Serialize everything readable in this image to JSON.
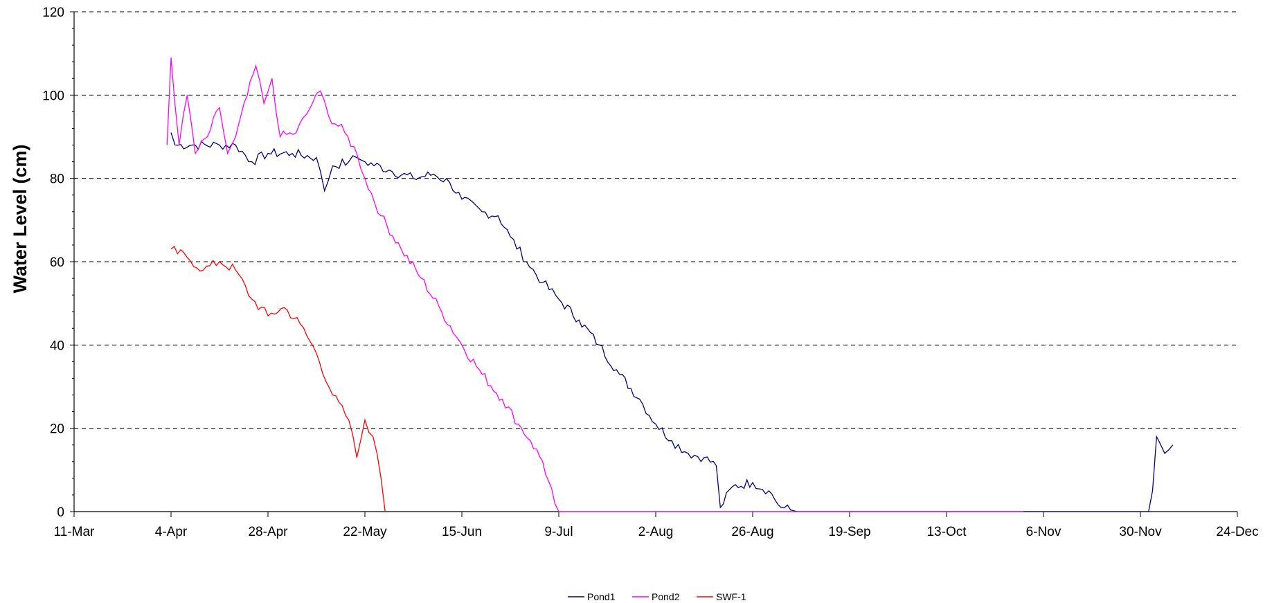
{
  "chart_data": {
    "type": "line",
    "title": "",
    "xlabel": "",
    "ylabel": "Water Level (cm)",
    "xlim": [
      "11-Mar",
      "24-Dec"
    ],
    "ylim": [
      0,
      120
    ],
    "x_ticks": [
      "11-Mar",
      "4-Apr",
      "28-Apr",
      "22-May",
      "15-Jun",
      "9-Jul",
      "2-Aug",
      "26-Aug",
      "19-Sep",
      "13-Oct",
      "6-Nov",
      "30-Nov",
      "24-Dec"
    ],
    "y_ticks": [
      0,
      20,
      40,
      60,
      80,
      100,
      120
    ],
    "grid": "horizontal dashed",
    "legend_position": "bottom-center",
    "series": [
      {
        "name": "Pond1",
        "color": "#000080",
        "points": [
          [
            "4-Apr",
            91
          ],
          [
            "5-Apr",
            88
          ],
          [
            "10-Apr",
            88
          ],
          [
            "16-Apr",
            88
          ],
          [
            "20-Apr",
            88
          ],
          [
            "24-Apr",
            84
          ],
          [
            "28-Apr",
            86
          ],
          [
            "4-May",
            86
          ],
          [
            "10-May",
            85
          ],
          [
            "12-May",
            77
          ],
          [
            "14-May",
            83
          ],
          [
            "18-May",
            84
          ],
          [
            "20-May",
            85
          ],
          [
            "22-May",
            84
          ],
          [
            "28-May",
            82
          ],
          [
            "3-Jun",
            80
          ],
          [
            "8-Jun",
            81
          ],
          [
            "12-Jun",
            79
          ],
          [
            "15-Jun",
            75
          ],
          [
            "20-Jun",
            72
          ],
          [
            "24-Jun",
            71
          ],
          [
            "27-Jun",
            66
          ],
          [
            "1-Jul",
            60
          ],
          [
            "5-Jul",
            55
          ],
          [
            "9-Jul",
            51
          ],
          [
            "14-Jul",
            46
          ],
          [
            "19-Jul",
            40
          ],
          [
            "24-Jul",
            33
          ],
          [
            "29-Jul",
            27
          ],
          [
            "2-Aug",
            21
          ],
          [
            "6-Aug",
            17
          ],
          [
            "10-Aug",
            14
          ],
          [
            "14-Aug",
            13
          ],
          [
            "17-Aug",
            11
          ],
          [
            "18-Aug",
            1
          ],
          [
            "21-Aug",
            6
          ],
          [
            "26-Aug",
            7
          ],
          [
            "30-Aug",
            5
          ],
          [
            "2-Sep",
            1
          ],
          [
            "6-Sep",
            0
          ],
          [
            "2-Dec",
            0
          ],
          [
            "3-Dec",
            5
          ],
          [
            "4-Dec",
            18
          ],
          [
            "6-Dec",
            14
          ],
          [
            "8-Dec",
            16
          ]
        ]
      },
      {
        "name": "Pond2",
        "color": "#FF00FF",
        "points": [
          [
            "3-Apr",
            88
          ],
          [
            "4-Apr",
            109
          ],
          [
            "6-Apr",
            88
          ],
          [
            "8-Apr",
            100
          ],
          [
            "10-Apr",
            86
          ],
          [
            "13-Apr",
            90
          ],
          [
            "16-Apr",
            97
          ],
          [
            "18-Apr",
            86
          ],
          [
            "20-Apr",
            90
          ],
          [
            "25-Apr",
            107
          ],
          [
            "27-Apr",
            98
          ],
          [
            "29-Apr",
            104
          ],
          [
            "1-May",
            90
          ],
          [
            "5-May",
            91
          ],
          [
            "9-May",
            98
          ],
          [
            "11-May",
            101
          ],
          [
            "13-May",
            95
          ],
          [
            "17-May",
            91
          ],
          [
            "20-May",
            86
          ],
          [
            "22-May",
            80
          ],
          [
            "26-May",
            71
          ],
          [
            "31-May",
            63
          ],
          [
            "5-Jun",
            56
          ],
          [
            "10-Jun",
            48
          ],
          [
            "15-Jun",
            40
          ],
          [
            "20-Jun",
            33
          ],
          [
            "25-Jun",
            27
          ],
          [
            "29-Jun",
            21
          ],
          [
            "2-Jul",
            17
          ],
          [
            "5-Jul",
            12
          ],
          [
            "8-Jul",
            2
          ],
          [
            "9-Jul",
            0
          ],
          [
            "13-Aug",
            0
          ],
          [
            "26-Aug",
            0
          ],
          [
            "13-Oct",
            0
          ],
          [
            "1-Nov",
            0
          ]
        ]
      },
      {
        "name": "SWF-1",
        "color": "#FF0000",
        "points": [
          [
            "4-Apr",
            63
          ],
          [
            "8-Apr",
            61
          ],
          [
            "12-Apr",
            58
          ],
          [
            "16-Apr",
            60
          ],
          [
            "20-Apr",
            58
          ],
          [
            "24-Apr",
            51
          ],
          [
            "28-Apr",
            47
          ],
          [
            "2-May",
            49
          ],
          [
            "6-May",
            45
          ],
          [
            "10-May",
            38
          ],
          [
            "14-May",
            28
          ],
          [
            "18-May",
            22
          ],
          [
            "20-May",
            13
          ],
          [
            "22-May",
            22
          ],
          [
            "24-May",
            18
          ],
          [
            "26-May",
            8
          ],
          [
            "27-May",
            0
          ]
        ]
      }
    ]
  },
  "legend": {
    "pond1_label": "Pond1",
    "pond2_label": "Pond2",
    "swf1_label": "SWF-1"
  }
}
